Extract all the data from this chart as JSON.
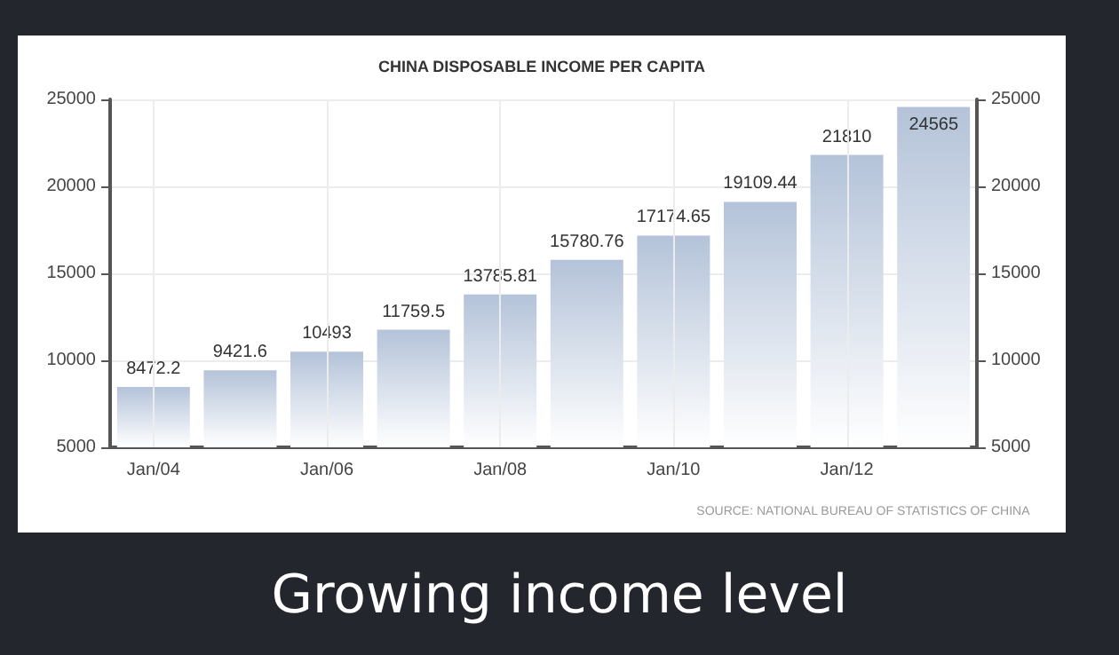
{
  "chart_data": {
    "type": "bar",
    "title": "CHINA DISPOSABLE INCOME PER CAPITA",
    "categories": [
      "Jan/04",
      null,
      "Jan/06",
      null,
      "Jan/08",
      null,
      "Jan/10",
      null,
      "Jan/12",
      null
    ],
    "values": [
      8472.2,
      9421.6,
      10493,
      11759.5,
      13785.81,
      15780.76,
      17174.65,
      19109.44,
      21810,
      24565
    ],
    "color": "#b4c3d9",
    "data_labels": true,
    "ylim": [
      5000,
      25000
    ],
    "yticks": [
      5000,
      10000,
      15000,
      20000,
      25000
    ],
    "y2lim": [
      5000,
      25000
    ],
    "y2ticks": [
      5000,
      10000,
      15000,
      20000,
      25000
    ],
    "grid": true,
    "annotations": [
      "SOURCE: NATIONAL BUREAU OF STATISTICS OF CHINA",
      "Growing income level"
    ]
  }
}
